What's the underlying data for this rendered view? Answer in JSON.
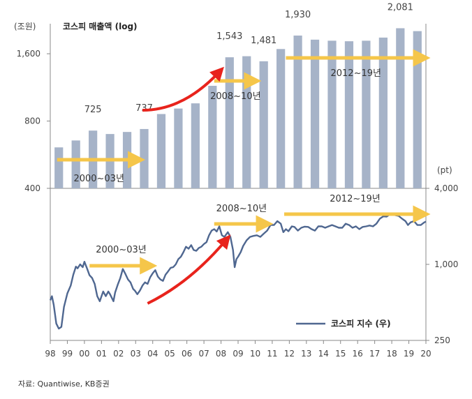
{
  "chart_data": [
    {
      "type": "bar",
      "title": "코스피 매출액 (log)",
      "y_unit": "(조원)",
      "ylim": [
        400,
        2000
      ],
      "y_scale": "log",
      "y_ticks": [
        "400",
        "800",
        "1,600"
      ],
      "categories": [
        "1998",
        "1999",
        "2000",
        "2001",
        "2002",
        "2003",
        "2004",
        "2005",
        "2006",
        "2007",
        "2008",
        "2009",
        "2010",
        "2011",
        "2012",
        "2013",
        "2014",
        "2015",
        "2016",
        "2017",
        "2018",
        "2019"
      ],
      "values": [
        610,
        655,
        725,
        700,
        715,
        737,
        860,
        910,
        960,
        1150,
        1543,
        1560,
        1481,
        1680,
        1930,
        1850,
        1830,
        1820,
        1830,
        1890,
        2081,
        2020
      ],
      "data_labels": [
        {
          "category": "2000",
          "text": "725"
        },
        {
          "category": "2003",
          "text": "737"
        },
        {
          "category": "2008",
          "text": "1,543"
        },
        {
          "category": "2010",
          "text": "1,481"
        },
        {
          "category": "2012",
          "text": "1,930"
        },
        {
          "category": "2018",
          "text": "2,081"
        }
      ],
      "annotations": [
        {
          "text": "2000~03년",
          "from": "2000",
          "to": "2003",
          "kind": "yellow-arrow"
        },
        {
          "text": "2008~10년",
          "from": "2008",
          "to": "2010",
          "kind": "yellow-arrow"
        },
        {
          "text": "2012~19년",
          "from": "2012",
          "to": "2019",
          "kind": "yellow-arrow"
        },
        {
          "text": "",
          "from": "2003",
          "to": "2007",
          "kind": "red-arrow"
        }
      ],
      "bar_color": "#a6b3c8",
      "grid": false
    },
    {
      "type": "line",
      "y_unit": "(pt)",
      "ylim": [
        250,
        4000
      ],
      "y_scale": "log",
      "y_ticks": [
        "250",
        "1,000",
        "4,000"
      ],
      "x_ticks": [
        "98",
        "99",
        "00",
        "01",
        "02",
        "03",
        "04",
        "05",
        "06",
        "07",
        "08",
        "09",
        "10",
        "11",
        "12",
        "13",
        "14",
        "15",
        "16",
        "17",
        "18",
        "19",
        "20"
      ],
      "legend": {
        "label": "코스피 지수 (우)",
        "position": "bottom-right"
      },
      "series": [
        {
          "name": "코스피 지수 (우)",
          "color": "#4f6790",
          "points": [
            [
              1998.0,
              520
            ],
            [
              1998.1,
              560
            ],
            [
              1998.2,
              480
            ],
            [
              1998.35,
              340
            ],
            [
              1998.5,
              310
            ],
            [
              1998.65,
              320
            ],
            [
              1998.8,
              460
            ],
            [
              1999.0,
              590
            ],
            [
              1999.2,
              680
            ],
            [
              1999.35,
              830
            ],
            [
              1999.5,
              960
            ],
            [
              1999.6,
              930
            ],
            [
              1999.75,
              1000
            ],
            [
              1999.9,
              950
            ],
            [
              2000.0,
              1050
            ],
            [
              2000.15,
              930
            ],
            [
              2000.3,
              820
            ],
            [
              2000.45,
              780
            ],
            [
              2000.6,
              700
            ],
            [
              2000.75,
              560
            ],
            [
              2000.9,
              510
            ],
            [
              2001.0,
              560
            ],
            [
              2001.1,
              610
            ],
            [
              2001.25,
              560
            ],
            [
              2001.4,
              610
            ],
            [
              2001.5,
              580
            ],
            [
              2001.7,
              510
            ],
            [
              2001.8,
              600
            ],
            [
              2001.95,
              690
            ],
            [
              2002.1,
              780
            ],
            [
              2002.25,
              920
            ],
            [
              2002.4,
              840
            ],
            [
              2002.55,
              760
            ],
            [
              2002.7,
              720
            ],
            [
              2002.85,
              640
            ],
            [
              2002.95,
              620
            ],
            [
              2003.1,
              580
            ],
            [
              2003.25,
              620
            ],
            [
              2003.4,
              680
            ],
            [
              2003.55,
              720
            ],
            [
              2003.7,
              700
            ],
            [
              2003.85,
              790
            ],
            [
              2004.0,
              850
            ],
            [
              2004.15,
              900
            ],
            [
              2004.3,
              800
            ],
            [
              2004.45,
              760
            ],
            [
              2004.6,
              740
            ],
            [
              2004.75,
              830
            ],
            [
              2004.9,
              880
            ],
            [
              2005.05,
              940
            ],
            [
              2005.2,
              950
            ],
            [
              2005.35,
              1000
            ],
            [
              2005.5,
              1100
            ],
            [
              2005.65,
              1150
            ],
            [
              2005.8,
              1250
            ],
            [
              2005.95,
              1380
            ],
            [
              2006.1,
              1330
            ],
            [
              2006.25,
              1420
            ],
            [
              2006.4,
              1300
            ],
            [
              2006.55,
              1280
            ],
            [
              2006.7,
              1350
            ],
            [
              2006.85,
              1380
            ],
            [
              2007.0,
              1450
            ],
            [
              2007.15,
              1500
            ],
            [
              2007.3,
              1700
            ],
            [
              2007.45,
              1850
            ],
            [
              2007.6,
              1900
            ],
            [
              2007.75,
              1820
            ],
            [
              2007.9,
              2000
            ],
            [
              2008.05,
              1700
            ],
            [
              2008.2,
              1650
            ],
            [
              2008.4,
              1800
            ],
            [
              2008.55,
              1650
            ],
            [
              2008.7,
              1300
            ],
            [
              2008.8,
              950
            ],
            [
              2008.9,
              1100
            ],
            [
              2009.0,
              1150
            ],
            [
              2009.15,
              1250
            ],
            [
              2009.3,
              1400
            ],
            [
              2009.5,
              1550
            ],
            [
              2009.7,
              1650
            ],
            [
              2009.9,
              1680
            ],
            [
              2010.1,
              1700
            ],
            [
              2010.3,
              1650
            ],
            [
              2010.5,
              1750
            ],
            [
              2010.7,
              1850
            ],
            [
              2010.9,
              2050
            ],
            [
              2011.1,
              2050
            ],
            [
              2011.3,
              2200
            ],
            [
              2011.5,
              2100
            ],
            [
              2011.65,
              1800
            ],
            [
              2011.8,
              1900
            ],
            [
              2011.95,
              1830
            ],
            [
              2012.15,
              2000
            ],
            [
              2012.3,
              1980
            ],
            [
              2012.5,
              1850
            ],
            [
              2012.7,
              1950
            ],
            [
              2012.9,
              1990
            ],
            [
              2013.1,
              1980
            ],
            [
              2013.3,
              1900
            ],
            [
              2013.5,
              1850
            ],
            [
              2013.7,
              2000
            ],
            [
              2013.9,
              2000
            ],
            [
              2014.1,
              1950
            ],
            [
              2014.3,
              2000
            ],
            [
              2014.5,
              2050
            ],
            [
              2014.7,
              2000
            ],
            [
              2014.9,
              1950
            ],
            [
              2015.1,
              1950
            ],
            [
              2015.3,
              2100
            ],
            [
              2015.5,
              2050
            ],
            [
              2015.7,
              1950
            ],
            [
              2015.9,
              2000
            ],
            [
              2016.1,
              1900
            ],
            [
              2016.3,
              1980
            ],
            [
              2016.5,
              2000
            ],
            [
              2016.7,
              2030
            ],
            [
              2016.9,
              2000
            ],
            [
              2017.1,
              2100
            ],
            [
              2017.3,
              2300
            ],
            [
              2017.5,
              2400
            ],
            [
              2017.7,
              2390
            ],
            [
              2017.9,
              2500
            ],
            [
              2018.05,
              2500
            ],
            [
              2018.2,
              2450
            ],
            [
              2018.4,
              2420
            ],
            [
              2018.6,
              2300
            ],
            [
              2018.8,
              2200
            ],
            [
              2018.95,
              2050
            ],
            [
              2019.1,
              2150
            ],
            [
              2019.3,
              2200
            ],
            [
              2019.5,
              2050
            ],
            [
              2019.7,
              2050
            ],
            [
              2019.9,
              2150
            ],
            [
              2020.0,
              2180
            ]
          ]
        }
      ],
      "annotations": [
        {
          "text": "2000~03년",
          "from": "2000",
          "to": "2003",
          "kind": "yellow-arrow"
        },
        {
          "text": "2008~10년",
          "from": "2008",
          "to": "2010",
          "kind": "yellow-arrow"
        },
        {
          "text": "2012~19년",
          "from": "2012",
          "to": "2019",
          "kind": "yellow-arrow"
        },
        {
          "text": "",
          "from": "2003",
          "to": "2007",
          "kind": "red-arrow"
        }
      ],
      "grid": false
    }
  ],
  "source": "자료: Quantiwise, KB증권",
  "colors": {
    "arrow_yellow": "#f5c64a",
    "arrow_red": "#e8231c",
    "axis": "#888888"
  }
}
